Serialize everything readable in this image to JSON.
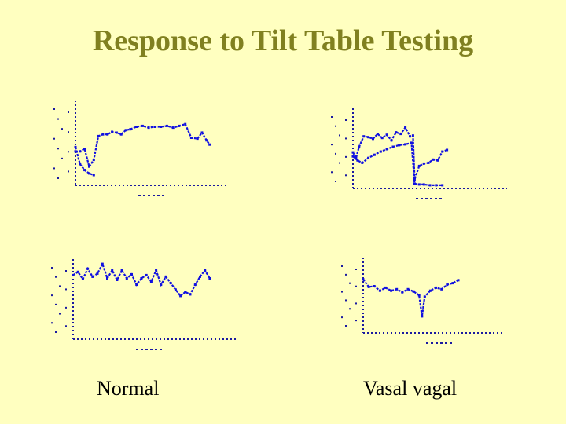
{
  "slide": {
    "title": "Response to Tilt Table Testing"
  },
  "captions": {
    "left": "Normal",
    "right": "Vasal vagal"
  },
  "colors": {
    "background": "#ffffc0",
    "title": "#808020",
    "trace": "#1010e0",
    "axis": "#1a1aa0"
  },
  "chart_data": [
    {
      "type": "line",
      "panel": "top-left",
      "title": "",
      "xlabel": "",
      "ylabel": "",
      "xlim": [
        0,
        10
      ],
      "ylim": [
        0,
        10
      ],
      "grid": false,
      "series": [
        {
          "x": [
            0,
            0.3,
            0.6,
            0.9,
            1.2,
            1.5,
            1.8,
            2.1,
            2.4,
            2.7,
            3.0,
            3.3,
            3.6,
            4.0,
            4.4,
            4.8,
            5.2,
            5.6,
            6.0,
            6.4,
            6.8,
            7.2,
            7.6,
            8.0,
            8.3,
            8.6,
            8.8
          ],
          "y": [
            4,
            4,
            4.3,
            2.2,
            3,
            5.8,
            6,
            6,
            6.3,
            6.2,
            6,
            6.5,
            6.6,
            6.9,
            7,
            6.8,
            6.9,
            6.9,
            7,
            6.8,
            7,
            7.2,
            5.6,
            5.5,
            6.2,
            5.3,
            4.8
          ]
        },
        {
          "x": [
            0,
            0.3,
            0.6,
            0.9,
            1.2
          ],
          "y": [
            4.5,
            2.5,
            1.8,
            1.4,
            1.2
          ]
        }
      ]
    },
    {
      "type": "line",
      "panel": "top-right",
      "title": "",
      "xlabel": "",
      "ylabel": "",
      "xlim": [
        0,
        10
      ],
      "ylim": [
        0,
        10
      ],
      "grid": false,
      "series": [
        {
          "x": [
            0,
            0.2,
            0.4,
            0.7,
            1.0,
            1.3,
            1.6,
            1.9,
            2.2,
            2.5,
            2.8,
            3.1,
            3.4,
            3.7,
            3.9,
            4.0,
            4.3,
            4.6,
            4.9,
            5.2,
            5.5,
            5.8,
            6.1
          ],
          "y": [
            4.5,
            3.8,
            5.2,
            6.5,
            6.4,
            6.2,
            6.8,
            6.3,
            6.7,
            6,
            7,
            6.8,
            7.6,
            6.5,
            6.6,
            1.1,
            2.8,
            3.1,
            3.2,
            3.6,
            3.5,
            4.6,
            4.8
          ]
        },
        {
          "x": [
            0,
            0.3,
            0.6,
            1.0,
            1.4,
            1.8,
            2.2,
            2.6,
            3.0,
            3.4,
            3.8,
            4.0,
            4.3,
            4.6,
            5.0,
            5.4,
            5.8
          ],
          "y": [
            4,
            3.5,
            3.2,
            3.8,
            4.2,
            4.6,
            4.9,
            5.2,
            5.4,
            5.5,
            5.7,
            0.6,
            0.5,
            0.5,
            0.4,
            0.4,
            0.4
          ]
        }
      ]
    },
    {
      "type": "line",
      "panel": "bottom-left",
      "title": "",
      "xlabel": "",
      "ylabel": "",
      "xlim": [
        0,
        10
      ],
      "ylim": [
        0,
        10
      ],
      "grid": false,
      "series": [
        {
          "x": [
            0,
            0.3,
            0.6,
            0.9,
            1.2,
            1.5,
            1.8,
            2.1,
            2.4,
            2.7,
            3.0,
            3.3,
            3.6,
            3.9,
            4.2,
            4.5,
            4.8,
            5.1,
            5.4,
            5.7,
            6.0,
            6.3,
            6.6,
            6.9,
            7.2,
            7.5,
            7.8,
            8.1,
            8.4
          ],
          "y": [
            8,
            8.4,
            7.5,
            8.8,
            7.8,
            8.2,
            9.4,
            7.6,
            8.6,
            7.4,
            8.6,
            7.6,
            8.1,
            6.8,
            7.6,
            8,
            7.2,
            8.6,
            6.8,
            7.8,
            7,
            6.2,
            5.4,
            5.9,
            5.6,
            6.8,
            7.8,
            8.6,
            7.6
          ]
        }
      ]
    },
    {
      "type": "line",
      "panel": "bottom-right",
      "title": "",
      "xlabel": "",
      "ylabel": "",
      "xlim": [
        0,
        10
      ],
      "ylim": [
        0,
        10
      ],
      "grid": false,
      "series": [
        {
          "x": [
            0,
            0.4,
            0.8,
            1.2,
            1.6,
            2.0,
            2.4,
            2.8,
            3.2,
            3.6,
            4.0,
            4.2,
            4.4,
            4.8,
            5.2,
            5.6,
            6.0,
            6.4,
            6.8
          ],
          "y": [
            7.1,
            6.1,
            6.2,
            5.6,
            6,
            5.6,
            5.8,
            5.4,
            5.8,
            5.5,
            5,
            2.2,
            4.8,
            5.6,
            6,
            5.8,
            6.4,
            6.6,
            7
          ]
        }
      ]
    }
  ]
}
